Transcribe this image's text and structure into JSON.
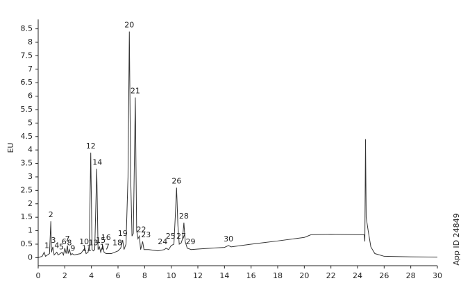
{
  "chart_data": {
    "type": "line",
    "y_label": "EU",
    "side_note": "App ID 24849",
    "xlim": [
      0,
      30
    ],
    "xticks": [
      0,
      2,
      4,
      6,
      8,
      10,
      12,
      14,
      16,
      18,
      20,
      22,
      24,
      26,
      28,
      30
    ],
    "ylim": [
      -0.3,
      8.85
    ],
    "yticks": [
      0,
      0.5,
      1,
      1.5,
      2,
      2.5,
      3,
      3.5,
      4,
      4.5,
      5,
      5.5,
      6,
      6.5,
      7,
      7.5,
      8,
      8.5
    ],
    "series": [
      {
        "color": "#333333",
        "x": [
          0,
          0.3,
          0.45,
          0.55,
          0.7,
          0.85,
          0.95,
          1.0,
          1.1,
          1.2,
          1.4,
          1.5,
          1.8,
          1.9,
          2.0,
          2.1,
          2.2,
          2.25,
          2.35,
          2.45,
          2.55,
          2.7,
          3.2,
          3.5,
          3.6,
          3.75,
          3.85,
          3.95,
          4.05,
          4.15,
          4.25,
          4.4,
          4.5,
          4.6,
          4.7,
          4.85,
          4.95,
          5.1,
          5.5,
          6.0,
          6.2,
          6.35,
          6.45,
          6.6,
          6.75,
          6.85,
          6.95,
          7.05,
          7.15,
          7.3,
          7.4,
          7.5,
          7.6,
          7.7,
          7.85,
          7.95,
          8.3,
          9.0,
          9.5,
          9.6,
          9.8,
          10.0,
          10.2,
          10.3,
          10.4,
          10.5,
          10.6,
          10.75,
          10.85,
          10.95,
          11.05,
          11.2,
          11.5,
          12,
          13,
          14,
          14.3,
          14.5,
          16,
          18,
          20,
          20.5,
          22,
          24,
          24.5,
          24.55,
          24.6,
          24.65,
          24.8,
          25.0,
          25.3,
          26,
          28,
          30
        ],
        "values": [
          0,
          0.05,
          0.2,
          0.05,
          0.1,
          0.15,
          1.35,
          0.2,
          0.4,
          0.1,
          0.2,
          0.1,
          0.2,
          0.1,
          0.35,
          0.15,
          0.45,
          0.15,
          0.3,
          0.1,
          0.15,
          0.1,
          0.15,
          0.35,
          0.15,
          0.2,
          0.5,
          3.9,
          0.3,
          0.25,
          0.3,
          3.3,
          0.3,
          0.4,
          0.2,
          0.45,
          0.2,
          0.15,
          0.15,
          0.25,
          0.35,
          0.65,
          0.3,
          0.5,
          3.0,
          8.4,
          3.0,
          0.8,
          0.9,
          5.95,
          1.0,
          0.7,
          0.8,
          0.3,
          0.6,
          0.3,
          0.3,
          0.25,
          0.3,
          0.35,
          0.3,
          0.45,
          0.5,
          1.5,
          2.6,
          1.2,
          0.5,
          0.55,
          0.7,
          1.3,
          0.6,
          0.35,
          0.3,
          0.32,
          0.35,
          0.38,
          0.45,
          0.4,
          0.5,
          0.62,
          0.75,
          0.85,
          0.87,
          0.85,
          0.85,
          0.6,
          4.4,
          1.5,
          1.0,
          0.4,
          0.15,
          0.05,
          0.03,
          0.02
        ]
      }
    ],
    "annotations": [
      {
        "text": "1",
        "x": 0.65,
        "y": 0.2
      },
      {
        "text": "2",
        "x": 0.95,
        "y": 1.35
      },
      {
        "text": "3",
        "x": 1.15,
        "y": 0.4
      },
      {
        "text": "4",
        "x": 1.4,
        "y": 0.2
      },
      {
        "text": "5",
        "x": 1.75,
        "y": 0.15
      },
      {
        "text": "6",
        "x": 1.95,
        "y": 0.35
      },
      {
        "text": "7",
        "x": 2.2,
        "y": 0.45
      },
      {
        "text": "8",
        "x": 2.35,
        "y": 0.3
      },
      {
        "text": "9",
        "x": 2.6,
        "y": 0.1
      },
      {
        "text": "10",
        "x": 3.45,
        "y": 0.35
      },
      {
        "text": "11",
        "x": 3.65,
        "y": 0.1
      },
      {
        "text": "12",
        "x": 3.95,
        "y": 3.9
      },
      {
        "text": "13",
        "x": 4.15,
        "y": 0.3
      },
      {
        "text": "14",
        "x": 4.45,
        "y": 3.3
      },
      {
        "text": "15",
        "x": 4.7,
        "y": 0.4
      },
      {
        "text": "16",
        "x": 5.1,
        "y": 0.5
      },
      {
        "text": "17",
        "x": 5.0,
        "y": 0.15
      },
      {
        "text": "18",
        "x": 5.95,
        "y": 0.3
      },
      {
        "text": "19",
        "x": 6.35,
        "y": 0.65
      },
      {
        "text": "20",
        "x": 6.85,
        "y": 8.4
      },
      {
        "text": "21",
        "x": 7.3,
        "y": 5.95
      },
      {
        "text": "22",
        "x": 7.75,
        "y": 0.8
      },
      {
        "text": "23",
        "x": 8.1,
        "y": 0.6
      },
      {
        "text": "24",
        "x": 9.35,
        "y": 0.35
      },
      {
        "text": "25",
        "x": 9.95,
        "y": 0.55
      },
      {
        "text": "26",
        "x": 10.4,
        "y": 2.6
      },
      {
        "text": "27",
        "x": 10.75,
        "y": 0.55
      },
      {
        "text": "28",
        "x": 10.95,
        "y": 1.3
      },
      {
        "text": "29",
        "x": 11.45,
        "y": 0.35
      },
      {
        "text": "30",
        "x": 14.3,
        "y": 0.45
      }
    ]
  }
}
